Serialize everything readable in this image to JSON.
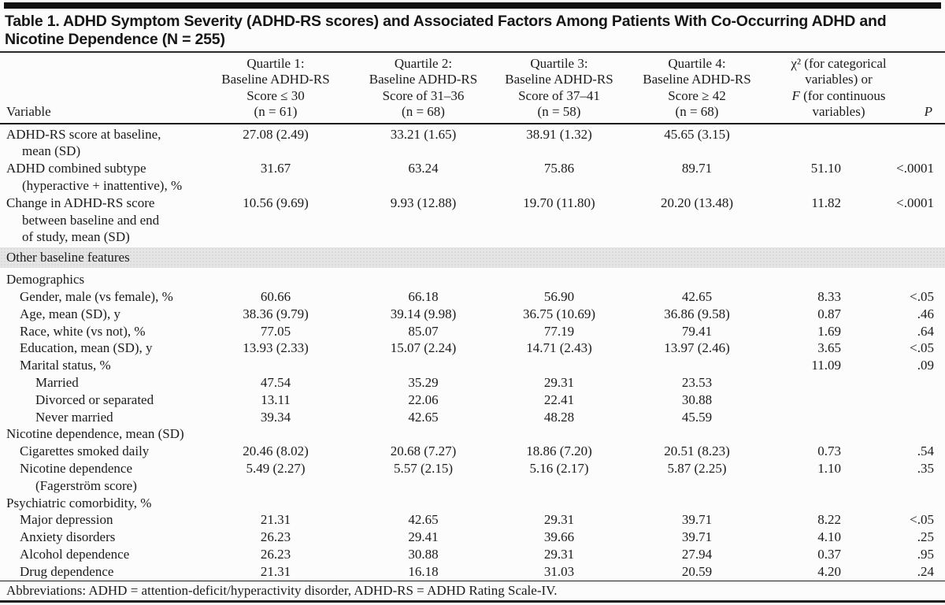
{
  "title": "Table 1. ADHD Symptom Severity (ADHD-RS scores) and Associated Factors Among Patients With Co-Occurring ADHD and Nicotine Dependence (N = 255)",
  "colors": {
    "band": "#e5e5e5",
    "rule": "#1d1d1d",
    "top_bar": "#121212"
  },
  "header": {
    "variable_label": "Variable",
    "quartiles": [
      {
        "lines": [
          "Quartile 1:",
          "Baseline ADHD-RS",
          "Score ≤ 30",
          "(n = 61)"
        ]
      },
      {
        "lines": [
          "Quartile 2:",
          "Baseline ADHD-RS",
          "Score of 31–36",
          "(n = 68)"
        ]
      },
      {
        "lines": [
          "Quartile 3:",
          "Baseline ADHD-RS",
          "Score of 37–41",
          "(n = 58)"
        ]
      },
      {
        "lines": [
          "Quartile 4:",
          "Baseline ADHD-RS",
          "Score ≥ 42",
          "(n = 68)"
        ]
      }
    ],
    "stat_lines": [
      "χ² (for categorical",
      "variables) or",
      "F (for continuous",
      "variables)"
    ],
    "p_label": "P"
  },
  "rows": [
    {
      "type": "data",
      "indent": 0,
      "lines": [
        "ADHD-RS score at baseline,",
        "mean (SD)"
      ],
      "values": [
        "27.08 (2.49)",
        "33.21 (1.65)",
        "38.91 (1.32)",
        "45.65 (3.15)",
        "",
        ""
      ]
    },
    {
      "type": "data",
      "indent": 0,
      "lines": [
        "ADHD combined subtype",
        "(hyperactive + inattentive), %"
      ],
      "values": [
        "31.67",
        "63.24",
        "75.86",
        "89.71",
        "51.10",
        "<.0001"
      ]
    },
    {
      "type": "data",
      "indent": 0,
      "lines": [
        "Change in ADHD-RS score",
        "between baseline and end",
        "of study, mean (SD)"
      ],
      "values": [
        "10.56 (9.69)",
        "9.93 (12.88)",
        "19.70 (11.80)",
        "20.20 (13.48)",
        "11.82",
        "<.0001"
      ]
    },
    {
      "type": "section",
      "label": "Other baseline features"
    },
    {
      "type": "data",
      "indent": 0,
      "gap": true,
      "lines": [
        "Demographics"
      ],
      "values": [
        "",
        "",
        "",
        "",
        "",
        ""
      ]
    },
    {
      "type": "data",
      "indent": 1,
      "lines": [
        "Gender, male (vs female), %"
      ],
      "values": [
        "60.66",
        "66.18",
        "56.90",
        "42.65",
        "8.33",
        "<.05"
      ]
    },
    {
      "type": "data",
      "indent": 1,
      "lines": [
        "Age, mean (SD), y"
      ],
      "values": [
        "38.36 (9.79)",
        "39.14 (9.98)",
        "36.75 (10.69)",
        "36.86 (9.58)",
        "0.87",
        ".46"
      ]
    },
    {
      "type": "data",
      "indent": 1,
      "lines": [
        "Race, white (vs not), %"
      ],
      "values": [
        "77.05",
        "85.07",
        "77.19",
        "79.41",
        "1.69",
        ".64"
      ]
    },
    {
      "type": "data",
      "indent": 1,
      "lines": [
        "Education, mean (SD), y"
      ],
      "values": [
        "13.93 (2.33)",
        "15.07 (2.24)",
        "14.71 (2.43)",
        "13.97 (2.46)",
        "3.65",
        "<.05"
      ]
    },
    {
      "type": "data",
      "indent": 1,
      "lines": [
        "Marital status, %"
      ],
      "values": [
        "",
        "",
        "",
        "",
        "11.09",
        ".09"
      ]
    },
    {
      "type": "data",
      "indent": 2,
      "lines": [
        "Married"
      ],
      "values": [
        "47.54",
        "35.29",
        "29.31",
        "23.53",
        "",
        ""
      ]
    },
    {
      "type": "data",
      "indent": 2,
      "lines": [
        "Divorced or separated"
      ],
      "values": [
        "13.11",
        "22.06",
        "22.41",
        "30.88",
        "",
        ""
      ]
    },
    {
      "type": "data",
      "indent": 2,
      "lines": [
        "Never married"
      ],
      "values": [
        "39.34",
        "42.65",
        "48.28",
        "45.59",
        "",
        ""
      ]
    },
    {
      "type": "data",
      "indent": 0,
      "lines": [
        "Nicotine dependence, mean (SD)"
      ],
      "values": [
        "",
        "",
        "",
        "",
        "",
        ""
      ]
    },
    {
      "type": "data",
      "indent": 1,
      "lines": [
        "Cigarettes smoked daily"
      ],
      "values": [
        "20.46 (8.02)",
        "20.68 (7.27)",
        "18.86 (7.20)",
        "20.51 (8.23)",
        "0.73",
        ".54"
      ]
    },
    {
      "type": "data",
      "indent": 1,
      "lines": [
        "Nicotine dependence",
        "(Fagerström score)"
      ],
      "values": [
        "5.49 (2.27)",
        "5.57 (2.15)",
        "5.16 (2.17)",
        "5.87 (2.25)",
        "1.10",
        ".35"
      ]
    },
    {
      "type": "data",
      "indent": 0,
      "lines": [
        "Psychiatric comorbidity, %"
      ],
      "values": [
        "",
        "",
        "",
        "",
        "",
        ""
      ]
    },
    {
      "type": "data",
      "indent": 1,
      "lines": [
        "Major depression"
      ],
      "values": [
        "21.31",
        "42.65",
        "29.31",
        "39.71",
        "8.22",
        "<.05"
      ]
    },
    {
      "type": "data",
      "indent": 1,
      "lines": [
        "Anxiety disorders"
      ],
      "values": [
        "26.23",
        "29.41",
        "39.66",
        "39.71",
        "4.10",
        ".25"
      ]
    },
    {
      "type": "data",
      "indent": 1,
      "lines": [
        "Alcohol dependence"
      ],
      "values": [
        "26.23",
        "30.88",
        "29.31",
        "27.94",
        "0.37",
        ".95"
      ]
    },
    {
      "type": "data",
      "indent": 1,
      "lines": [
        "Drug dependence"
      ],
      "values": [
        "21.31",
        "16.18",
        "31.03",
        "20.59",
        "4.20",
        ".24"
      ]
    }
  ],
  "footer": {
    "abbreviations": "Abbreviations: ADHD = attention-deficit/hyperactivity disorder, ADHD-RS = ADHD Rating Scale-IV."
  }
}
